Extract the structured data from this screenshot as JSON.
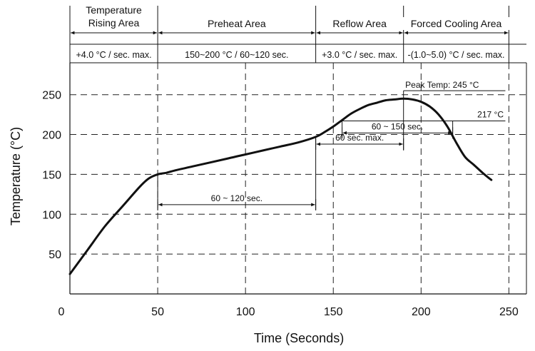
{
  "chart_data": {
    "type": "line",
    "xlabel": "Time (Seconds)",
    "ylabel": "Temperature (°C)",
    "xlim": [
      0,
      260
    ],
    "ylim": [
      0,
      290
    ],
    "x_ticks": [
      0,
      50,
      100,
      150,
      200,
      250
    ],
    "y_ticks": [
      50,
      100,
      150,
      200,
      250
    ],
    "grid": "dashed",
    "areas": [
      {
        "name": "Temperature\nRising Area",
        "x_start": 0,
        "x_end": 50,
        "rate": "+4.0 °C / sec. max."
      },
      {
        "name": "Preheat Area",
        "x_start": 50,
        "x_end": 140,
        "rate": "150~200 °C / 60~120 sec."
      },
      {
        "name": "Reflow Area",
        "x_start": 140,
        "x_end": 190,
        "rate": "+3.0 °C / sec. max."
      },
      {
        "name": "Forced Cooling Area",
        "x_start": 190,
        "x_end": 250,
        "rate": "-(1.0~5.0) °C / sec. max."
      }
    ],
    "series": [
      {
        "x": [
          0,
          10,
          20,
          30,
          40,
          45,
          50,
          55,
          60,
          70,
          80,
          90,
          100,
          110,
          120,
          130,
          140,
          145,
          150,
          155,
          160,
          165,
          170,
          175,
          180,
          185,
          190,
          195,
          200,
          205,
          210,
          215,
          220,
          225,
          230,
          235,
          240
        ],
        "y": [
          25,
          55,
          85,
          110,
          135,
          145,
          150,
          152,
          155,
          160,
          165,
          170,
          175,
          180,
          185,
          190,
          197,
          203,
          210,
          218,
          226,
          232,
          237,
          240,
          243,
          244,
          245,
          244,
          241,
          235,
          225,
          210,
          190,
          172,
          162,
          152,
          143
        ]
      }
    ],
    "annotations": [
      {
        "text": "Peak Temp: 245 °C",
        "y": 245
      },
      {
        "text": "217 °C",
        "y": 217
      },
      {
        "text": "60 ~ 150 sec.",
        "x_start": 155,
        "x_end": 218,
        "y": 202
      },
      {
        "text": "60 sec. max.",
        "x_start": 140,
        "x_end": 190,
        "y": 188
      },
      {
        "text": "60 ~ 120 sec.",
        "x_start": 50,
        "x_end": 140,
        "y": 112
      }
    ]
  }
}
